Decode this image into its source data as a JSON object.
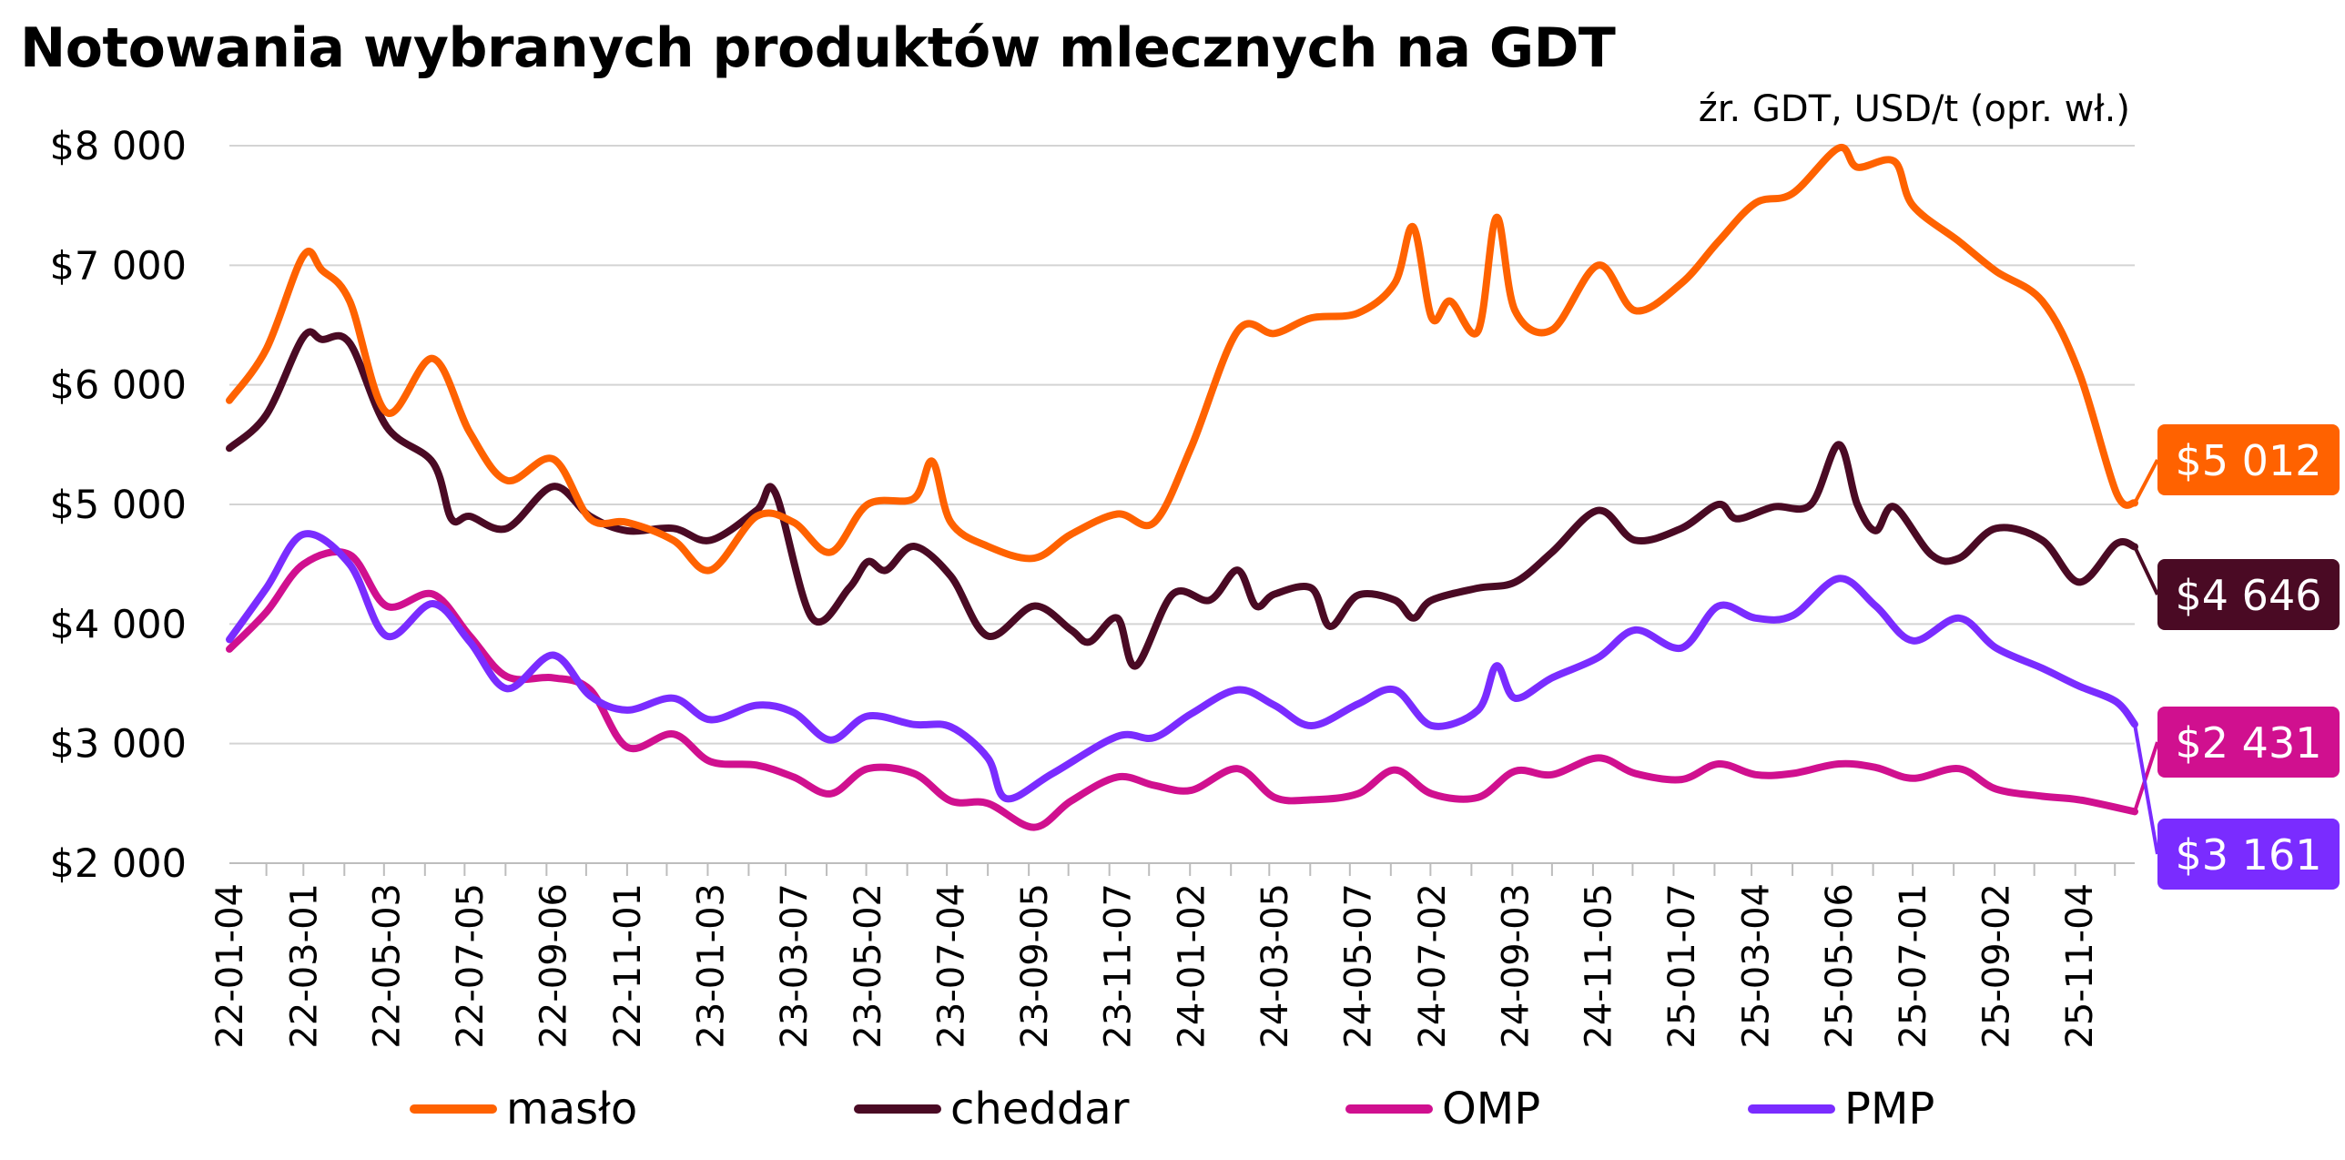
{
  "chart_data": {
    "type": "line",
    "title": "Notowania wybranych produktów mlecznych na GDT",
    "subtitle": "źr. GDT, USD/t (opr. wł.)",
    "xlabel": "",
    "ylabel": "",
    "ylim": [
      2000,
      8000
    ],
    "yticks": [
      "$8 000",
      "$7 000",
      "$6 000",
      "$5 000",
      "$4 000",
      "$3 000",
      "$2 000"
    ],
    "ytick_values": [
      8000,
      7000,
      6000,
      5000,
      4000,
      3000,
      2000
    ],
    "xtick_labels": [
      "22-01-04",
      "22-03-01",
      "22-05-03",
      "22-07-05",
      "22-09-06",
      "22-11-01",
      "23-01-03",
      "23-03-07",
      "23-05-02",
      "23-07-04",
      "23-09-05",
      "23-11-07",
      "24-01-02",
      "24-03-05",
      "24-05-07",
      "24-07-02",
      "24-09-03",
      "24-11-05",
      "25-01-07",
      "25-03-04",
      "25-05-06",
      "25-07-01",
      "25-09-02",
      "25-11-04"
    ],
    "grid": true,
    "legend_position": "bottom",
    "x_start": "22-01-04",
    "x_end": "25-12-16",
    "series": [
      {
        "name": "masło",
        "color": "#ff6200",
        "end_label": "$5 012",
        "points": [
          [
            "22-01-04",
            5870
          ],
          [
            "22-02-01",
            6300
          ],
          [
            "22-03-01",
            7080
          ],
          [
            "22-03-15",
            6960
          ],
          [
            "22-04-05",
            6700
          ],
          [
            "22-05-03",
            5770
          ],
          [
            "22-06-07",
            6220
          ],
          [
            "22-07-05",
            5600
          ],
          [
            "22-08-02",
            5200
          ],
          [
            "22-09-06",
            5380
          ],
          [
            "22-10-04",
            4880
          ],
          [
            "22-11-01",
            4850
          ],
          [
            "22-12-06",
            4700
          ],
          [
            "23-01-03",
            4450
          ],
          [
            "23-02-07",
            4900
          ],
          [
            "23-03-07",
            4850
          ],
          [
            "23-04-04",
            4600
          ],
          [
            "23-05-02",
            5000
          ],
          [
            "23-06-06",
            5050
          ],
          [
            "23-06-20",
            5360
          ],
          [
            "23-07-04",
            4850
          ],
          [
            "23-08-01",
            4650
          ],
          [
            "23-09-05",
            4550
          ],
          [
            "23-10-03",
            4750
          ],
          [
            "23-11-07",
            4920
          ],
          [
            "23-12-05",
            4850
          ],
          [
            "24-01-02",
            5480
          ],
          [
            "24-02-06",
            6450
          ],
          [
            "24-03-05",
            6430
          ],
          [
            "24-04-02",
            6560
          ],
          [
            "24-05-07",
            6600
          ],
          [
            "24-06-04",
            6850
          ],
          [
            "24-06-18",
            7320
          ],
          [
            "24-07-02",
            6560
          ],
          [
            "24-07-16",
            6700
          ],
          [
            "24-08-06",
            6450
          ],
          [
            "24-08-20",
            7400
          ],
          [
            "24-09-03",
            6620
          ],
          [
            "24-10-01",
            6460
          ],
          [
            "24-11-05",
            7000
          ],
          [
            "24-12-03",
            6620
          ],
          [
            "25-01-07",
            6850
          ],
          [
            "25-02-04",
            7200
          ],
          [
            "25-03-04",
            7520
          ],
          [
            "25-04-01",
            7600
          ],
          [
            "25-05-06",
            7980
          ],
          [
            "25-05-20",
            7820
          ],
          [
            "25-06-17",
            7870
          ],
          [
            "25-07-01",
            7500
          ],
          [
            "25-08-05",
            7200
          ],
          [
            "25-09-02",
            6950
          ],
          [
            "25-10-07",
            6700
          ],
          [
            "25-11-04",
            6100
          ],
          [
            "25-12-02",
            5100
          ],
          [
            "25-12-16",
            5012
          ]
        ]
      },
      {
        "name": "cheddar",
        "color": "#4a0a24",
        "end_label": "$4 646",
        "points": [
          [
            "22-01-04",
            5470
          ],
          [
            "22-02-01",
            5750
          ],
          [
            "22-03-01",
            6400
          ],
          [
            "22-03-15",
            6380
          ],
          [
            "22-04-05",
            6350
          ],
          [
            "22-05-03",
            5650
          ],
          [
            "22-06-07",
            5350
          ],
          [
            "22-06-21",
            4880
          ],
          [
            "22-07-05",
            4900
          ],
          [
            "22-08-02",
            4800
          ],
          [
            "22-09-06",
            5150
          ],
          [
            "22-10-04",
            4900
          ],
          [
            "22-11-01",
            4780
          ],
          [
            "22-12-06",
            4800
          ],
          [
            "23-01-03",
            4700
          ],
          [
            "23-02-07",
            4950
          ],
          [
            "23-02-21",
            5100
          ],
          [
            "23-03-21",
            4050
          ],
          [
            "23-04-18",
            4300
          ],
          [
            "23-05-02",
            4520
          ],
          [
            "23-05-16",
            4450
          ],
          [
            "23-06-06",
            4650
          ],
          [
            "23-07-04",
            4400
          ],
          [
            "23-08-01",
            3900
          ],
          [
            "23-09-05",
            4150
          ],
          [
            "23-10-03",
            3950
          ],
          [
            "23-10-17",
            3850
          ],
          [
            "23-11-07",
            4050
          ],
          [
            "23-11-21",
            3650
          ],
          [
            "23-12-19",
            4250
          ],
          [
            "24-01-16",
            4200
          ],
          [
            "24-02-06",
            4450
          ],
          [
            "24-02-20",
            4150
          ],
          [
            "24-03-05",
            4250
          ],
          [
            "24-04-02",
            4300
          ],
          [
            "24-04-16",
            3980
          ],
          [
            "24-05-07",
            4240
          ],
          [
            "24-06-04",
            4200
          ],
          [
            "24-06-18",
            4050
          ],
          [
            "24-07-02",
            4200
          ],
          [
            "24-08-06",
            4300
          ],
          [
            "24-09-03",
            4350
          ],
          [
            "24-10-01",
            4600
          ],
          [
            "24-11-05",
            4950
          ],
          [
            "24-12-03",
            4700
          ],
          [
            "25-01-07",
            4800
          ],
          [
            "25-02-04",
            5000
          ],
          [
            "25-02-18",
            4880
          ],
          [
            "25-03-18",
            4980
          ],
          [
            "25-04-15",
            5000
          ],
          [
            "25-05-06",
            5500
          ],
          [
            "25-05-20",
            5000
          ],
          [
            "25-06-03",
            4780
          ],
          [
            "25-06-17",
            4980
          ],
          [
            "25-07-15",
            4580
          ],
          [
            "25-08-05",
            4550
          ],
          [
            "25-09-02",
            4800
          ],
          [
            "25-10-07",
            4700
          ],
          [
            "25-11-04",
            4350
          ],
          [
            "25-12-02",
            4670
          ],
          [
            "25-12-16",
            4646
          ]
        ]
      },
      {
        "name": "OMP",
        "color": "#d0108f",
        "end_label": "$2 431",
        "points": [
          [
            "22-01-04",
            3790
          ],
          [
            "22-02-01",
            4100
          ],
          [
            "22-03-01",
            4500
          ],
          [
            "22-04-05",
            4580
          ],
          [
            "22-05-03",
            4150
          ],
          [
            "22-06-07",
            4250
          ],
          [
            "22-07-05",
            3900
          ],
          [
            "22-08-02",
            3560
          ],
          [
            "22-09-06",
            3550
          ],
          [
            "22-10-04",
            3450
          ],
          [
            "22-11-01",
            2970
          ],
          [
            "22-12-06",
            3080
          ],
          [
            "23-01-03",
            2850
          ],
          [
            "23-02-07",
            2820
          ],
          [
            "23-03-07",
            2720
          ],
          [
            "23-04-04",
            2580
          ],
          [
            "23-05-02",
            2790
          ],
          [
            "23-06-06",
            2750
          ],
          [
            "23-07-04",
            2520
          ],
          [
            "23-08-01",
            2500
          ],
          [
            "23-09-05",
            2300
          ],
          [
            "23-10-03",
            2520
          ],
          [
            "23-11-07",
            2720
          ],
          [
            "23-12-05",
            2650
          ],
          [
            "24-01-02",
            2610
          ],
          [
            "24-02-06",
            2790
          ],
          [
            "24-03-05",
            2550
          ],
          [
            "24-04-02",
            2530
          ],
          [
            "24-05-07",
            2580
          ],
          [
            "24-06-04",
            2780
          ],
          [
            "24-07-02",
            2580
          ],
          [
            "24-08-06",
            2550
          ],
          [
            "24-09-03",
            2770
          ],
          [
            "24-10-01",
            2740
          ],
          [
            "24-11-05",
            2880
          ],
          [
            "24-12-03",
            2750
          ],
          [
            "25-01-07",
            2700
          ],
          [
            "25-02-04",
            2830
          ],
          [
            "25-03-04",
            2740
          ],
          [
            "25-04-01",
            2750
          ],
          [
            "25-05-06",
            2830
          ],
          [
            "25-06-03",
            2800
          ],
          [
            "25-07-01",
            2710
          ],
          [
            "25-08-05",
            2790
          ],
          [
            "25-09-02",
            2620
          ],
          [
            "25-10-07",
            2560
          ],
          [
            "25-11-04",
            2530
          ],
          [
            "25-12-16",
            2431
          ]
        ]
      },
      {
        "name": "PMP",
        "color": "#7a2cff",
        "end_label": "$3 161",
        "points": [
          [
            "22-01-04",
            3870
          ],
          [
            "22-02-01",
            4300
          ],
          [
            "22-03-01",
            4750
          ],
          [
            "22-04-05",
            4500
          ],
          [
            "22-05-03",
            3900
          ],
          [
            "22-06-07",
            4170
          ],
          [
            "22-07-05",
            3850
          ],
          [
            "22-08-02",
            3460
          ],
          [
            "22-09-06",
            3740
          ],
          [
            "22-10-04",
            3400
          ],
          [
            "22-11-01",
            3280
          ],
          [
            "22-12-06",
            3380
          ],
          [
            "23-01-03",
            3200
          ],
          [
            "23-02-07",
            3320
          ],
          [
            "23-03-07",
            3260
          ],
          [
            "23-04-04",
            3030
          ],
          [
            "23-05-02",
            3230
          ],
          [
            "23-06-06",
            3160
          ],
          [
            "23-07-04",
            3140
          ],
          [
            "23-08-01",
            2880
          ],
          [
            "23-08-15",
            2540
          ],
          [
            "23-09-19",
            2750
          ],
          [
            "23-11-07",
            3060
          ],
          [
            "23-12-05",
            3050
          ],
          [
            "24-01-02",
            3250
          ],
          [
            "24-02-06",
            3450
          ],
          [
            "24-03-05",
            3320
          ],
          [
            "24-04-02",
            3150
          ],
          [
            "24-05-07",
            3330
          ],
          [
            "24-06-04",
            3450
          ],
          [
            "24-07-02",
            3150
          ],
          [
            "24-08-06",
            3280
          ],
          [
            "24-08-20",
            3650
          ],
          [
            "24-09-03",
            3380
          ],
          [
            "24-10-01",
            3550
          ],
          [
            "24-11-05",
            3720
          ],
          [
            "24-12-03",
            3950
          ],
          [
            "25-01-07",
            3800
          ],
          [
            "25-02-04",
            4150
          ],
          [
            "25-03-04",
            4050
          ],
          [
            "25-04-01",
            4070
          ],
          [
            "25-05-06",
            4380
          ],
          [
            "25-06-03",
            4150
          ],
          [
            "25-07-01",
            3860
          ],
          [
            "25-08-05",
            4050
          ],
          [
            "25-09-02",
            3800
          ],
          [
            "25-10-07",
            3630
          ],
          [
            "25-11-04",
            3480
          ],
          [
            "25-12-02",
            3350
          ],
          [
            "25-12-16",
            3161
          ]
        ]
      }
    ]
  }
}
